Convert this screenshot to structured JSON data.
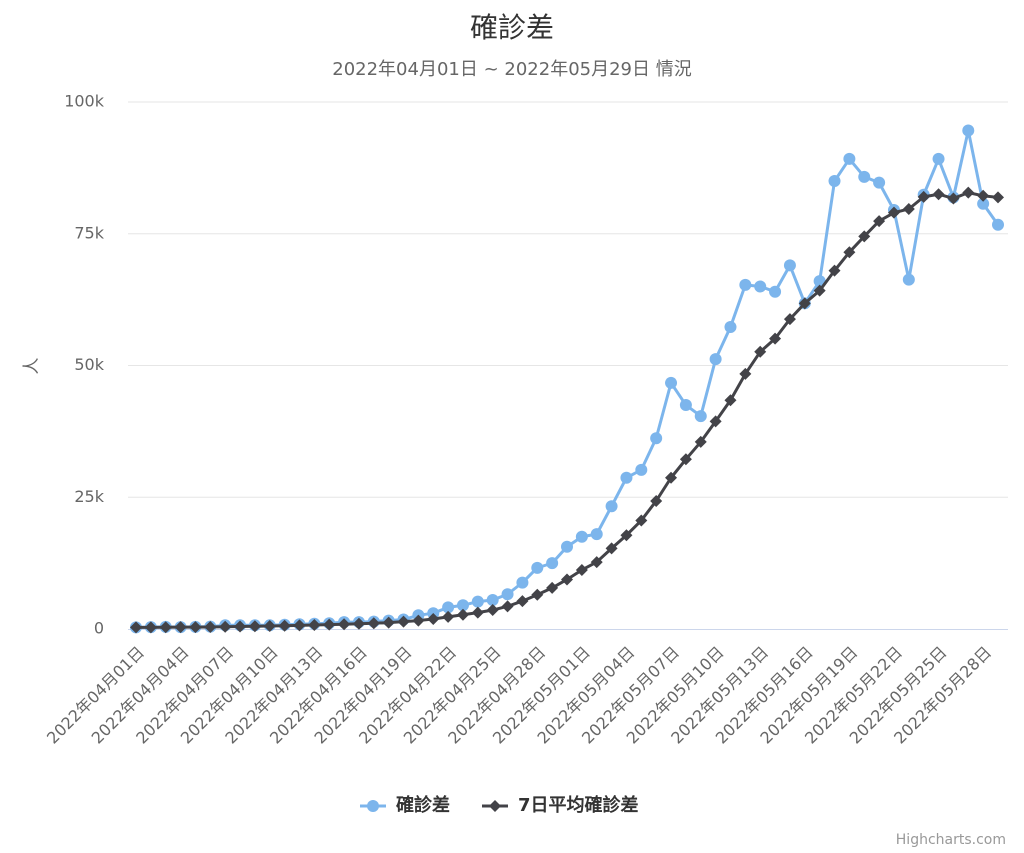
{
  "chart_data": {
    "type": "line",
    "title": "確診差",
    "subtitle": "2022年04月01日 ~ 2022年05月29日 情況",
    "y_label": "人",
    "credits": "Highcharts.com",
    "categories": [
      "2022年04月01日",
      null,
      null,
      "2022年04月04日",
      null,
      null,
      "2022年04月07日",
      null,
      null,
      "2022年04月10日",
      null,
      null,
      "2022年04月13日",
      null,
      null,
      "2022年04月16日",
      null,
      null,
      "2022年04月19日",
      null,
      null,
      "2022年04月22日",
      null,
      null,
      "2022年04月25日",
      null,
      null,
      "2022年04月28日",
      null,
      null,
      "2022年05月01日",
      null,
      null,
      "2022年05月04日",
      null,
      null,
      "2022年05月07日",
      null,
      null,
      "2022年05月10日",
      null,
      null,
      "2022年05月13日",
      null,
      null,
      "2022年05月16日",
      null,
      null,
      "2022年05月19日",
      null,
      null,
      "2022年05月22日",
      null,
      null,
      "2022年05月25日",
      null,
      null,
      "2022年05月28日",
      null
    ],
    "series": [
      {
        "name": "確診差",
        "color": "#7cb5ec",
        "marker": "circle",
        "values": [
          300,
          350,
          400,
          350,
          400,
          450,
          700,
          700,
          700,
          700,
          800,
          900,
          1000,
          1100,
          1300,
          1300,
          1400,
          1600,
          1800,
          2600,
          3000,
          4100,
          4500,
          5200,
          5500,
          6600,
          8800,
          11600,
          12500,
          15600,
          17500,
          18000,
          23300,
          28700,
          30200,
          36200,
          46700,
          42500,
          40400,
          51200,
          57300,
          65300,
          65000,
          64000,
          69000,
          61800,
          66000,
          85000,
          89200,
          85800,
          84700,
          79500,
          66300,
          82400,
          89200,
          81900,
          94600,
          80700,
          76700
        ]
      },
      {
        "name": "7日平均確診差",
        "color": "#434348",
        "marker": "diamond",
        "values": [
          300,
          320,
          340,
          350,
          360,
          380,
          420,
          470,
          520,
          570,
          620,
          680,
          750,
          820,
          900,
          1000,
          1100,
          1200,
          1400,
          1600,
          1900,
          2300,
          2700,
          3100,
          3600,
          4300,
          5300,
          6500,
          7800,
          9400,
          11200,
          12700,
          15300,
          17800,
          20600,
          24300,
          28700,
          32200,
          35500,
          39400,
          43400,
          48400,
          52600,
          55100,
          58800,
          61800,
          64200,
          68000,
          71500,
          74500,
          77400,
          79000,
          79700,
          82000,
          82500,
          81700,
          82800,
          82200,
          81900
        ]
      }
    ],
    "ylim": [
      0,
      100000
    ],
    "yticks": [
      0,
      {
        "value": 25000,
        "label": "25k"
      },
      {
        "value": 50000,
        "label": "50k"
      },
      {
        "value": 75000,
        "label": "75k"
      },
      {
        "value": 100000,
        "label": "100k"
      }
    ],
    "grid": true,
    "legend": "bottom"
  }
}
